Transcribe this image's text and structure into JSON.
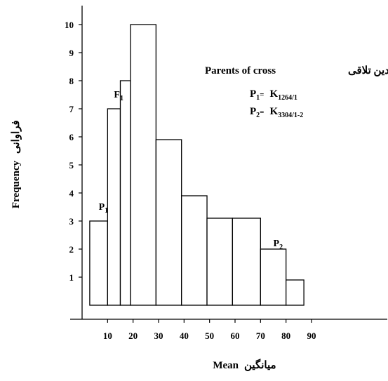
{
  "chart_data": {
    "type": "bar",
    "subtype": "histogram",
    "bins": [
      {
        "x0": 3,
        "x1": 10,
        "value": 3
      },
      {
        "x0": 10,
        "x1": 15,
        "value": 7
      },
      {
        "x0": 15,
        "x1": 19,
        "value": 8
      },
      {
        "x0": 19,
        "x1": 29,
        "value": 10
      },
      {
        "x0": 29,
        "x1": 39,
        "value": 5.9
      },
      {
        "x0": 39,
        "x1": 49,
        "value": 3.9
      },
      {
        "x0": 49,
        "x1": 59,
        "value": 3.1
      },
      {
        "x0": 59,
        "x1": 70,
        "value": 3.1
      },
      {
        "x0": 70,
        "x1": 80,
        "value": 2
      },
      {
        "x0": 80,
        "x1": 87,
        "value": 0.9
      }
    ],
    "xlim": [
      0,
      120
    ],
    "ylim": [
      0,
      11
    ],
    "x_ticks": [
      "10",
      "20",
      "30",
      "40",
      "50",
      "60",
      "70",
      "80",
      "90"
    ],
    "x_tick_values": [
      10,
      20,
      30,
      40,
      50,
      60,
      70,
      80,
      90
    ],
    "y_ticks": [
      "1",
      "2",
      "3",
      "4",
      "5",
      "6",
      "7",
      "8",
      "9",
      "10"
    ],
    "y_tick_values": [
      1,
      2,
      3,
      4,
      5,
      6,
      7,
      8,
      9,
      10
    ],
    "xlabel_en": "Mean",
    "xlabel_fa": "میانگین",
    "ylabel_en": "Frequency",
    "ylabel_fa": "فراوانی",
    "grid": false,
    "legend": {
      "title_en": "Parents of cross",
      "title_fa": "والدین تلاقی",
      "p1_label": "P",
      "p1_sub": "1",
      "p1_eq": "=",
      "p1_value": "K",
      "p1_value_sub": "1264/1",
      "p2_label": "P",
      "p2_sub": "2",
      "p2_eq": "=",
      "p2_value": "K",
      "p2_value_sub": "3304/1-2"
    },
    "annotations": [
      {
        "text": "P",
        "sub": "1",
        "x": 6.5,
        "y": 3.4
      },
      {
        "text": "F",
        "sub": "1",
        "x": 12.5,
        "y": 7.4
      },
      {
        "text": "P",
        "sub": "2",
        "x": 75,
        "y": 2.1
      }
    ]
  }
}
